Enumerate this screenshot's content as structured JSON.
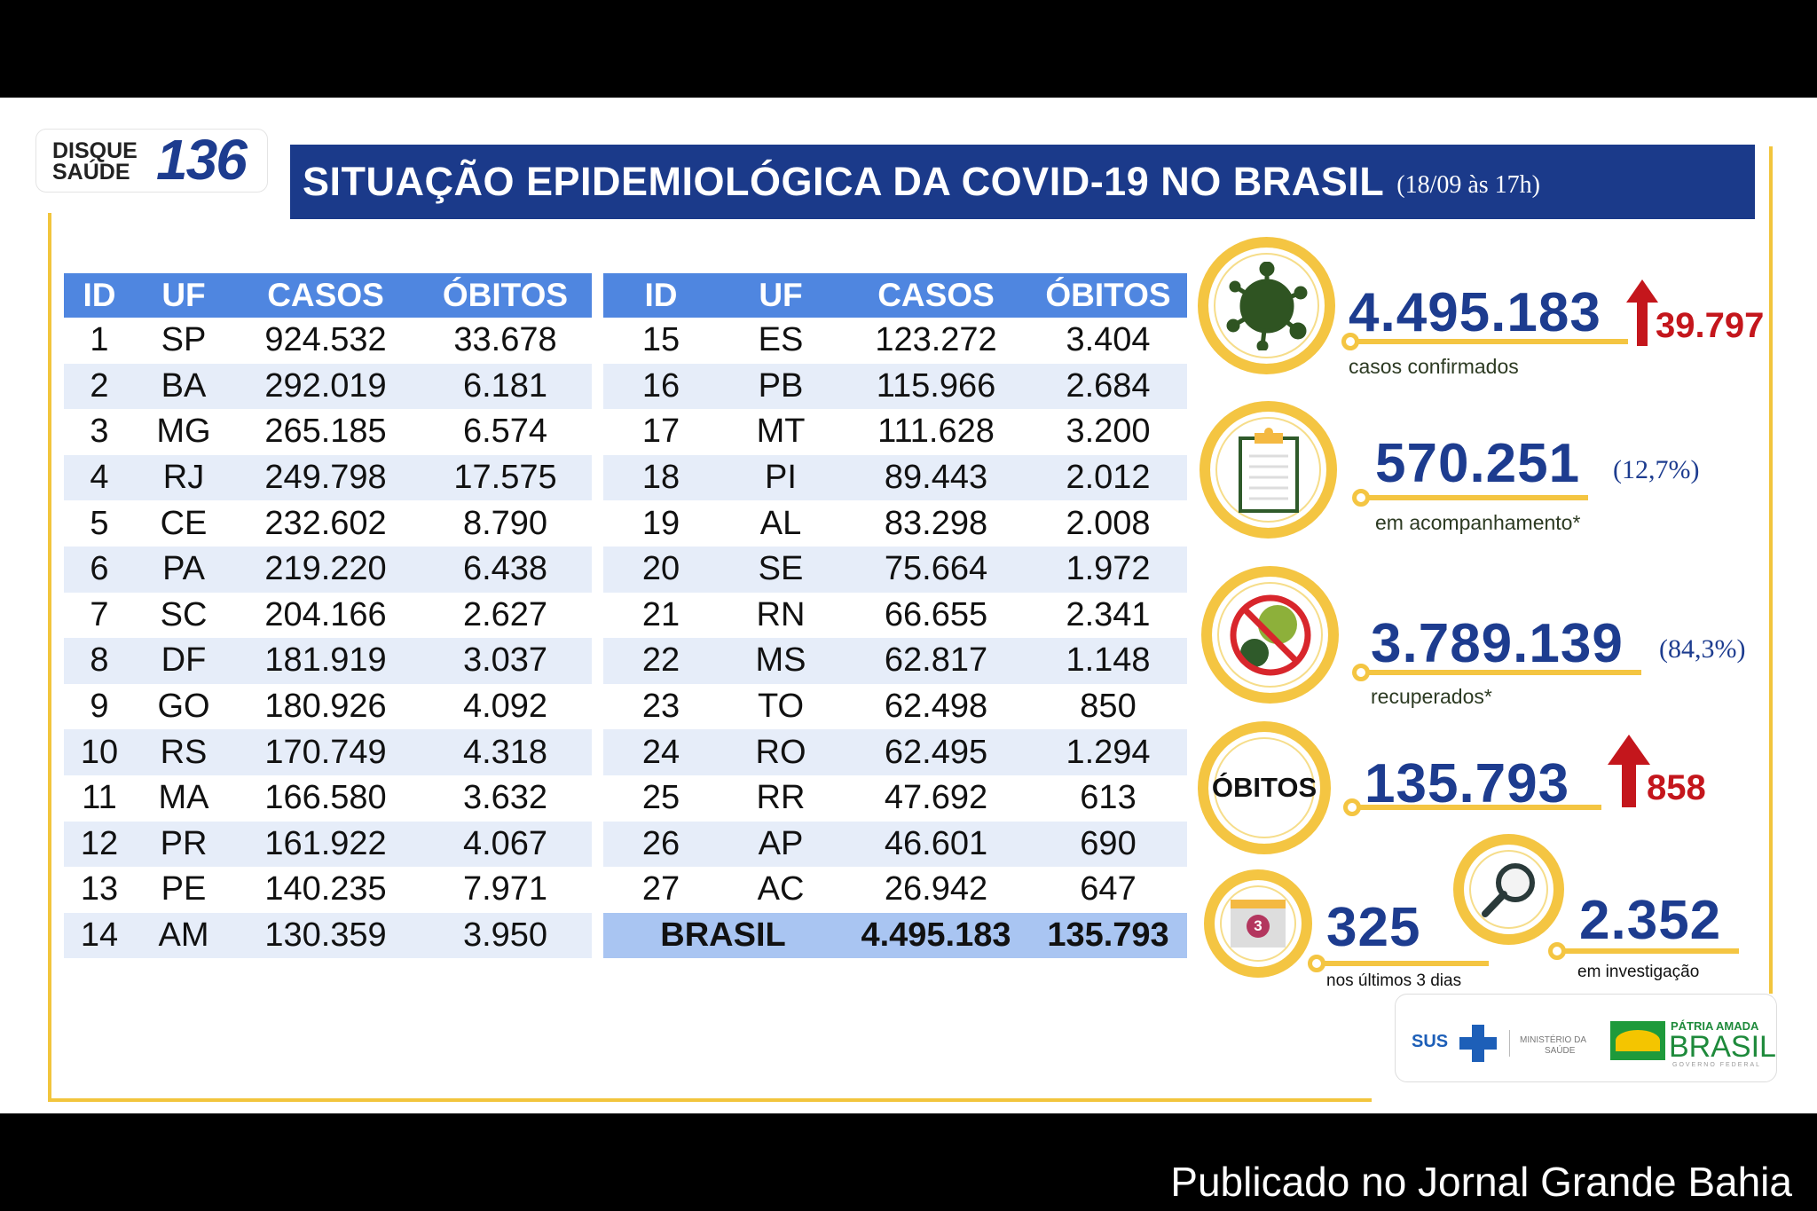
{
  "header": {
    "title": "SITUAÇÃO EPIDEMIOLÓGICA DA COVID-19 NO BRASIL",
    "date": "(18/09 às 17h)"
  },
  "disque": {
    "line1": "DISQUE",
    "line2": "SAÚDE",
    "number": "136"
  },
  "table": {
    "headers": [
      "ID",
      "UF",
      "CASOS",
      "ÓBITOS"
    ],
    "left": [
      [
        "1",
        "SP",
        "924.532",
        "33.678"
      ],
      [
        "2",
        "BA",
        "292.019",
        "6.181"
      ],
      [
        "3",
        "MG",
        "265.185",
        "6.574"
      ],
      [
        "4",
        "RJ",
        "249.798",
        "17.575"
      ],
      [
        "5",
        "CE",
        "232.602",
        "8.790"
      ],
      [
        "6",
        "PA",
        "219.220",
        "6.438"
      ],
      [
        "7",
        "SC",
        "204.166",
        "2.627"
      ],
      [
        "8",
        "DF",
        "181.919",
        "3.037"
      ],
      [
        "9",
        "GO",
        "180.926",
        "4.092"
      ],
      [
        "10",
        "RS",
        "170.749",
        "4.318"
      ],
      [
        "11",
        "MA",
        "166.580",
        "3.632"
      ],
      [
        "12",
        "PR",
        "161.922",
        "4.067"
      ],
      [
        "13",
        "PE",
        "140.235",
        "7.971"
      ],
      [
        "14",
        "AM",
        "130.359",
        "3.950"
      ]
    ],
    "right": [
      [
        "15",
        "ES",
        "123.272",
        "3.404"
      ],
      [
        "16",
        "PB",
        "115.966",
        "2.684"
      ],
      [
        "17",
        "MT",
        "111.628",
        "3.200"
      ],
      [
        "18",
        "PI",
        "89.443",
        "2.012"
      ],
      [
        "19",
        "AL",
        "83.298",
        "2.008"
      ],
      [
        "20",
        "SE",
        "75.664",
        "1.972"
      ],
      [
        "21",
        "RN",
        "66.655",
        "2.341"
      ],
      [
        "22",
        "MS",
        "62.817",
        "1.148"
      ],
      [
        "23",
        "TO",
        "62.498",
        "850"
      ],
      [
        "24",
        "RO",
        "62.495",
        "1.294"
      ],
      [
        "25",
        "RR",
        "47.692",
        "613"
      ],
      [
        "26",
        "AP",
        "46.601",
        "690"
      ],
      [
        "27",
        "AC",
        "26.942",
        "647"
      ]
    ],
    "total": {
      "label": "BRASIL",
      "casos": "4.495.183",
      "obitos": "135.793"
    }
  },
  "stats": {
    "confirmed": {
      "value": "4.495.183",
      "increase": "39.797",
      "label": "casos confirmados",
      "icon": "virus-icon"
    },
    "monitoring": {
      "value": "570.251",
      "pct": "(12,7%)",
      "label": "em acompanhamento*",
      "icon": "clipboard-icon"
    },
    "recovered": {
      "value": "3.789.139",
      "pct": "(84,3%)",
      "label": "recuperados*",
      "icon": "no-virus-icon"
    },
    "deaths": {
      "badge": "ÓBITOS",
      "value": "135.793",
      "increase": "858"
    },
    "last3": {
      "value": "325",
      "label": "nos últimos 3 dias",
      "calendar": "3",
      "icon": "calendar-icon"
    },
    "investigation": {
      "value": "2.352",
      "label": "em investigação",
      "icon": "magnifier-icon"
    }
  },
  "logos": {
    "sus": "SUS",
    "ministry1": "MINISTÉRIO DA",
    "ministry2": "SAÚDE",
    "patria": "PÁTRIA AMADA",
    "brasil": "BRASIL",
    "gov": "GOVERNO FEDERAL"
  },
  "footer": {
    "credit": "Publicado no Jornal Grande Bahia"
  },
  "colors": {
    "navy": "#1b3a8a",
    "header_blue": "#4f86e0",
    "yellow": "#f4c542",
    "red": "#c4161c"
  }
}
